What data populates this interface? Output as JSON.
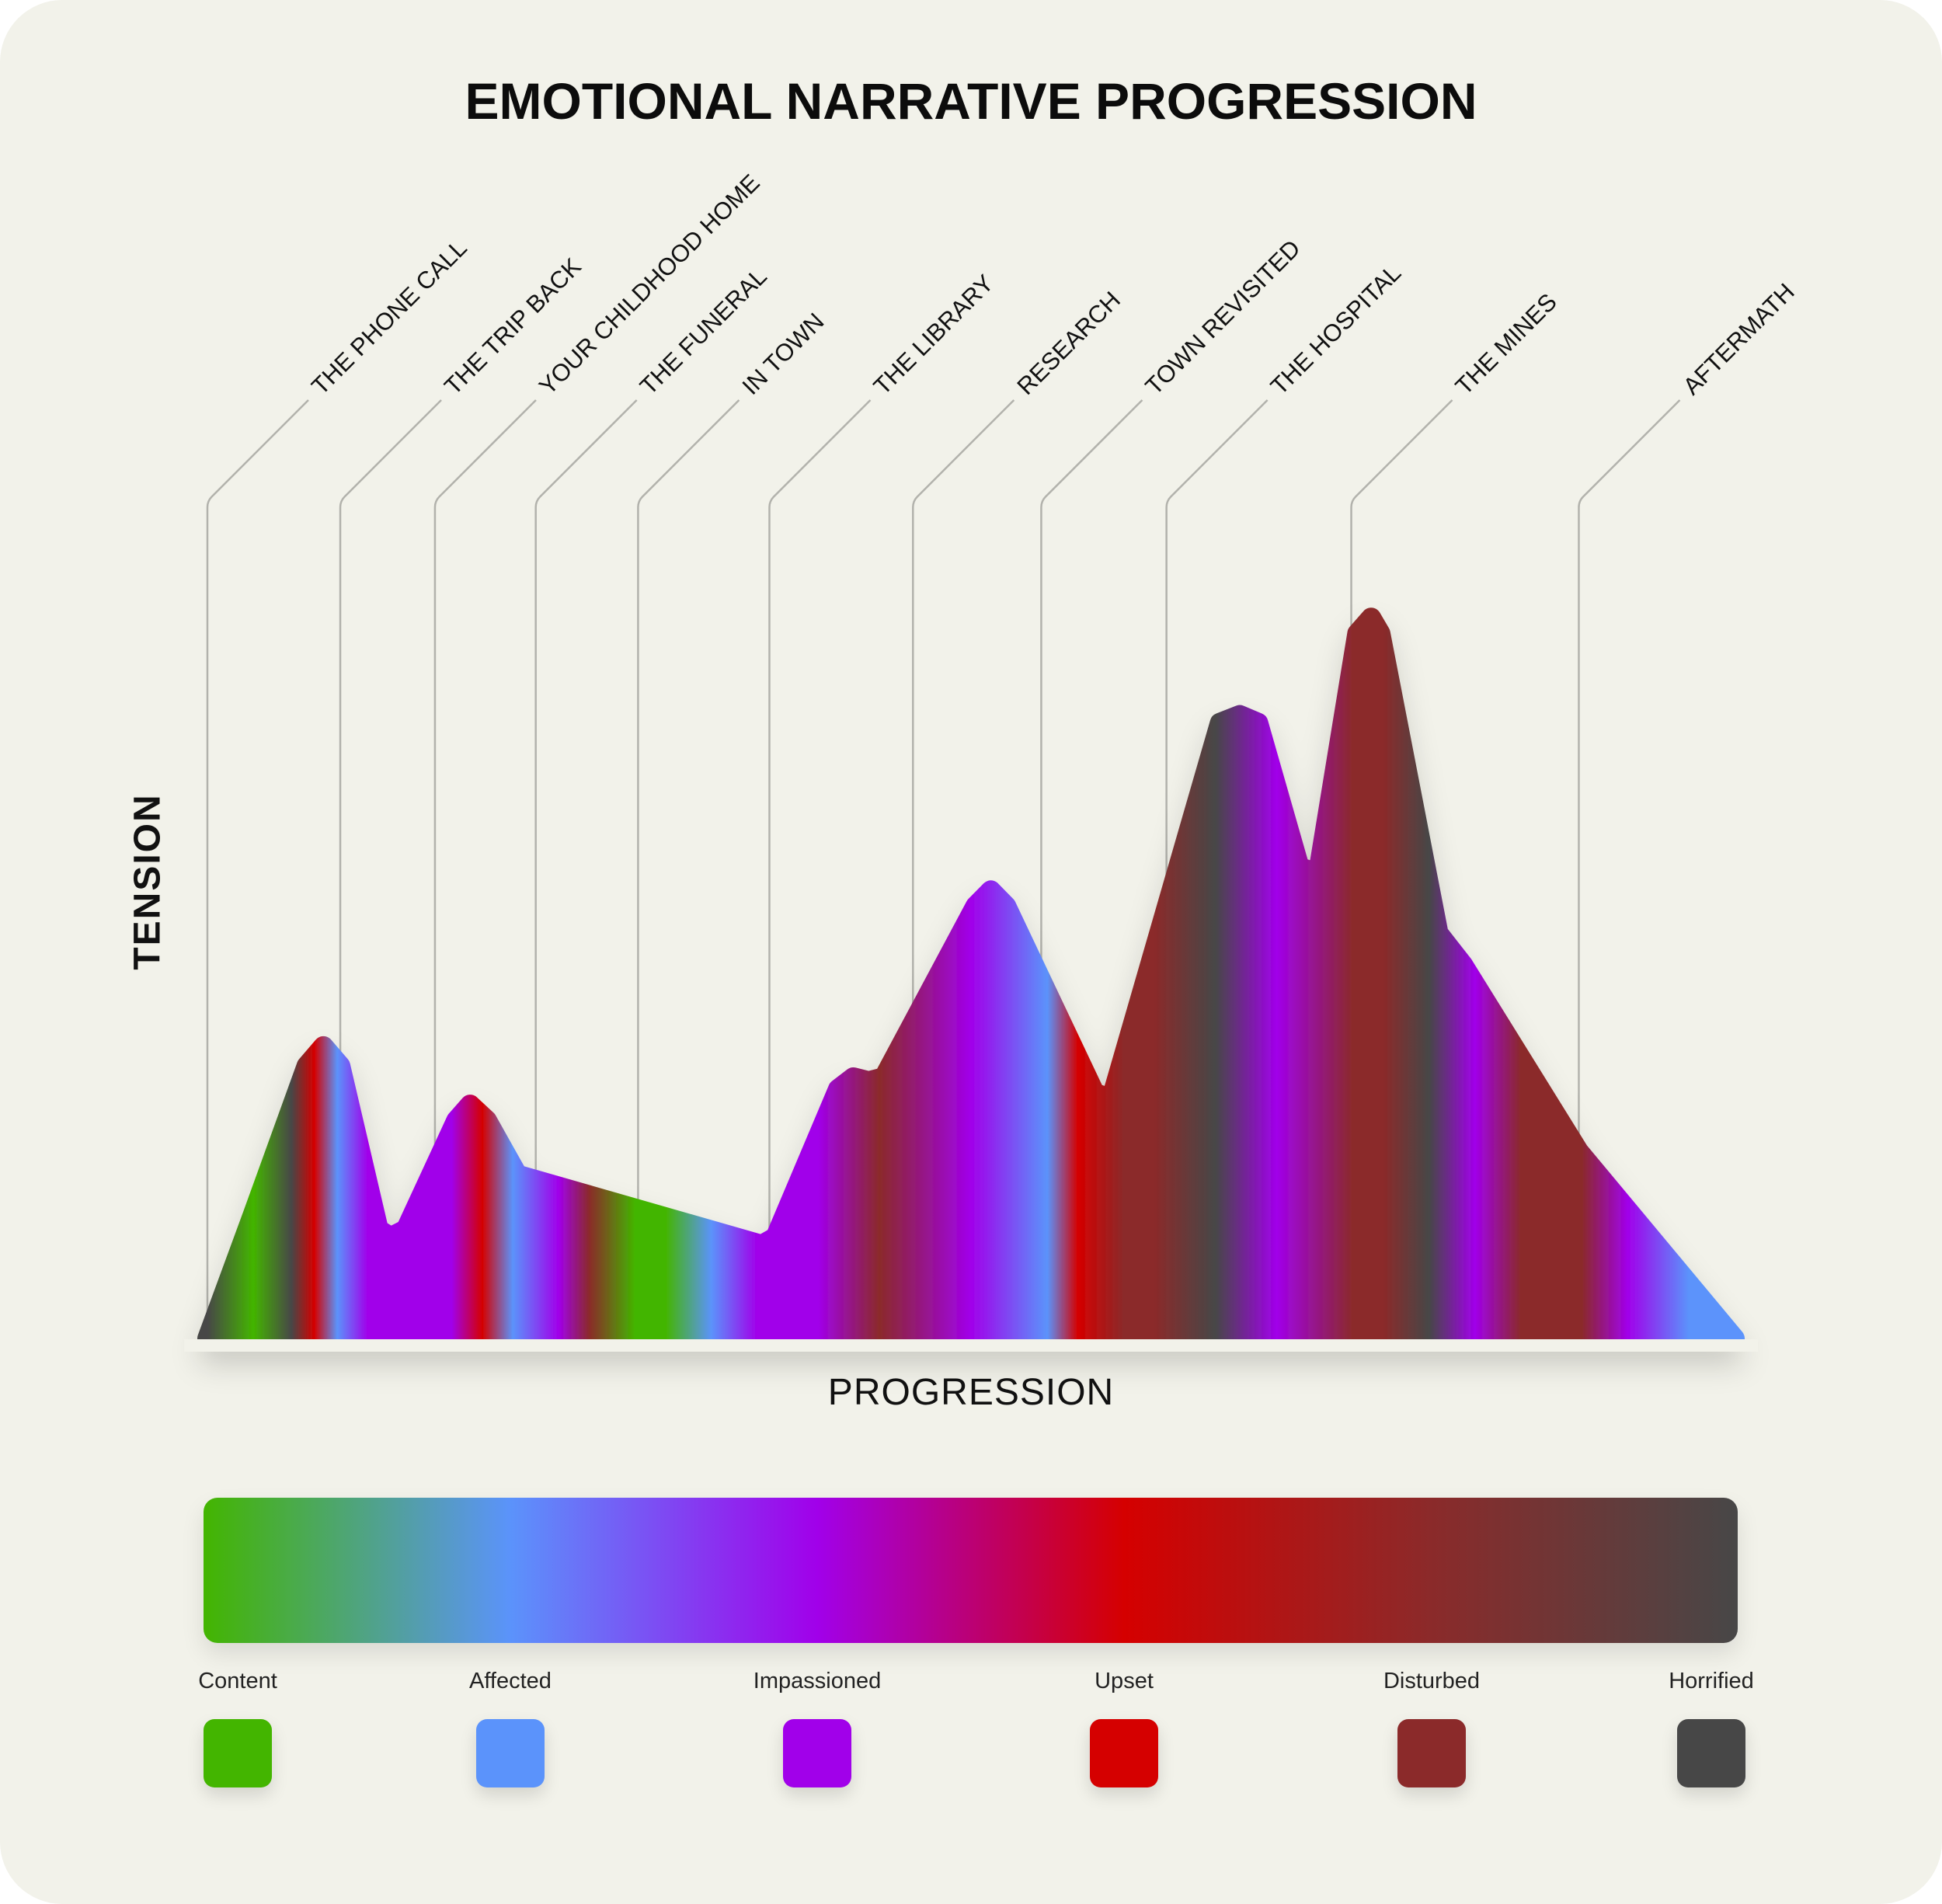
{
  "title": "EMOTIONAL NARRATIVE PROGRESSION",
  "chart_data": {
    "type": "area",
    "title": "EMOTIONAL NARRATIVE PROGRESSION",
    "xlabel": "PROGRESSION",
    "ylabel": "TENSION",
    "xlim": [
      0,
      1
    ],
    "ylim": [
      0,
      1
    ],
    "grid": false,
    "legend_position": "bottom",
    "tension_curve": {
      "x": [
        0,
        0.03,
        0.065,
        0.076,
        0.087,
        0.112,
        0.12,
        0.13,
        0.163,
        0.172,
        0.183,
        0.203,
        0.363,
        0.372,
        0.413,
        0.423,
        0.433,
        0.443,
        0.503,
        0.513,
        0.523,
        0.581,
        0.588,
        0.593,
        0.663,
        0.676,
        0.688,
        0.715,
        0.722,
        0.728,
        0.753,
        0.762,
        0.768,
        0.806,
        0.814,
        0.822,
        0.898,
        1.0
      ],
      "y": [
        0,
        0.16,
        0.35,
        0.375,
        0.35,
        0.14,
        0.13,
        0.14,
        0.28,
        0.3,
        0.28,
        0.21,
        0.12,
        0.13,
        0.32,
        0.335,
        0.33,
        0.335,
        0.555,
        0.575,
        0.555,
        0.315,
        0.31,
        0.315,
        0.79,
        0.8,
        0.79,
        0.605,
        0.6,
        0.605,
        0.905,
        0.925,
        0.905,
        0.52,
        0.5,
        0.48,
        0.24,
        0
      ]
    },
    "chapters": [
      {
        "label": "THE PHONE CALL",
        "x": 0.0
      },
      {
        "label": "THE TRIP BACK",
        "x": 0.087
      },
      {
        "label": "YOUR CHILDHOOD HOME",
        "x": 0.149
      },
      {
        "label": "THE FUNERAL",
        "x": 0.215
      },
      {
        "label": "IN TOWN",
        "x": 0.282
      },
      {
        "label": "THE LIBRARY",
        "x": 0.368
      },
      {
        "label": "RESEARCH",
        "x": 0.462
      },
      {
        "label": "TOWN REVISITED",
        "x": 0.546
      },
      {
        "label": "THE HOSPITAL",
        "x": 0.628
      },
      {
        "label": "THE MINES",
        "x": 0.749
      },
      {
        "label": "AFTERMATH",
        "x": 0.898
      }
    ],
    "emotion_bands": {
      "x": [
        0.0,
        0.03,
        0.055,
        0.07,
        0.085,
        0.105,
        0.13,
        0.16,
        0.18,
        0.2,
        0.23,
        0.25,
        0.28,
        0.3,
        0.33,
        0.36,
        0.4,
        0.44,
        0.5,
        0.55,
        0.57,
        0.6,
        0.62,
        0.66,
        0.7,
        0.75,
        0.77,
        0.8,
        0.83,
        0.86,
        0.9,
        0.93,
        0.97,
        1.0
      ],
      "emotion": [
        "Horrified",
        "Content",
        "Horrified",
        "Upset",
        "Affected",
        "Impassioned",
        "Impassioned",
        "Impassioned",
        "Upset",
        "Affected",
        "Impassioned",
        "Disturbed",
        "Content",
        "Content",
        "Affected",
        "Impassioned",
        "Impassioned",
        "Disturbed",
        "Impassioned",
        "Affected",
        "Upset",
        "Disturbed",
        "Disturbed",
        "Horrified",
        "Impassioned",
        "Disturbed",
        "Disturbed",
        "Horrified",
        "Impassioned",
        "Disturbed",
        "Disturbed",
        "Impassioned",
        "Affected",
        "Affected"
      ]
    }
  },
  "legend": {
    "items": [
      {
        "label": "Content",
        "color": "#43b500"
      },
      {
        "label": "Affected",
        "color": "#5b93fb"
      },
      {
        "label": "Impassioned",
        "color": "#a100ea"
      },
      {
        "label": "Upset",
        "color": "#d50000"
      },
      {
        "label": "Disturbed",
        "color": "#8b2a2a"
      },
      {
        "label": "Horrified",
        "color": "#474747"
      }
    ]
  }
}
